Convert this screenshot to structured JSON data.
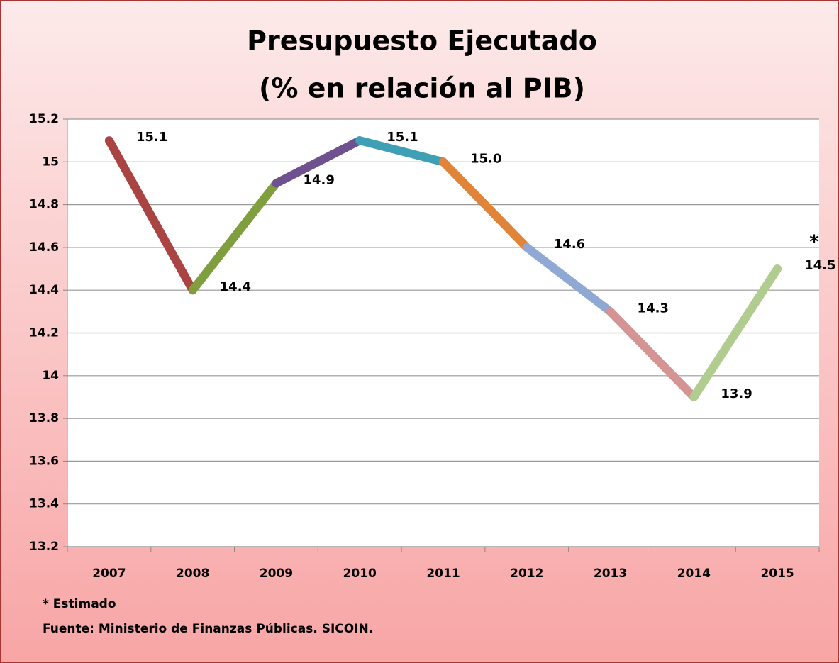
{
  "chart_data": {
    "type": "line",
    "title": [
      "Presupuesto Ejecutado",
      "(% en relación al PIB)"
    ],
    "categories": [
      "2007",
      "2008",
      "2009",
      "2010",
      "2011",
      "2012",
      "2013",
      "2014",
      "2015"
    ],
    "values": [
      15.1,
      14.4,
      14.9,
      15.1,
      15.0,
      14.6,
      14.3,
      13.9,
      14.5
    ],
    "value_labels": [
      "15.1",
      "14.4",
      "14.9",
      "15.1",
      "15.0",
      "14.6",
      "14.3",
      "13.9",
      "14.5"
    ],
    "segment_colors": [
      "#a94442",
      "#7f9f3f",
      "#6f518f",
      "#3f9fb5",
      "#e0843a",
      "#8fa8d4",
      "#d49494",
      "#b0cc8f"
    ],
    "ylim": [
      13.2,
      15.2
    ],
    "yticks": [
      13.2,
      13.4,
      13.6,
      13.8,
      14,
      14.2,
      14.4,
      14.6,
      14.8,
      15,
      15.2
    ],
    "grid": true,
    "annotation": "*",
    "notes": [
      "* Estimado",
      "Fuente: Ministerio de Finanzas  Públicas.  SICOIN."
    ]
  }
}
